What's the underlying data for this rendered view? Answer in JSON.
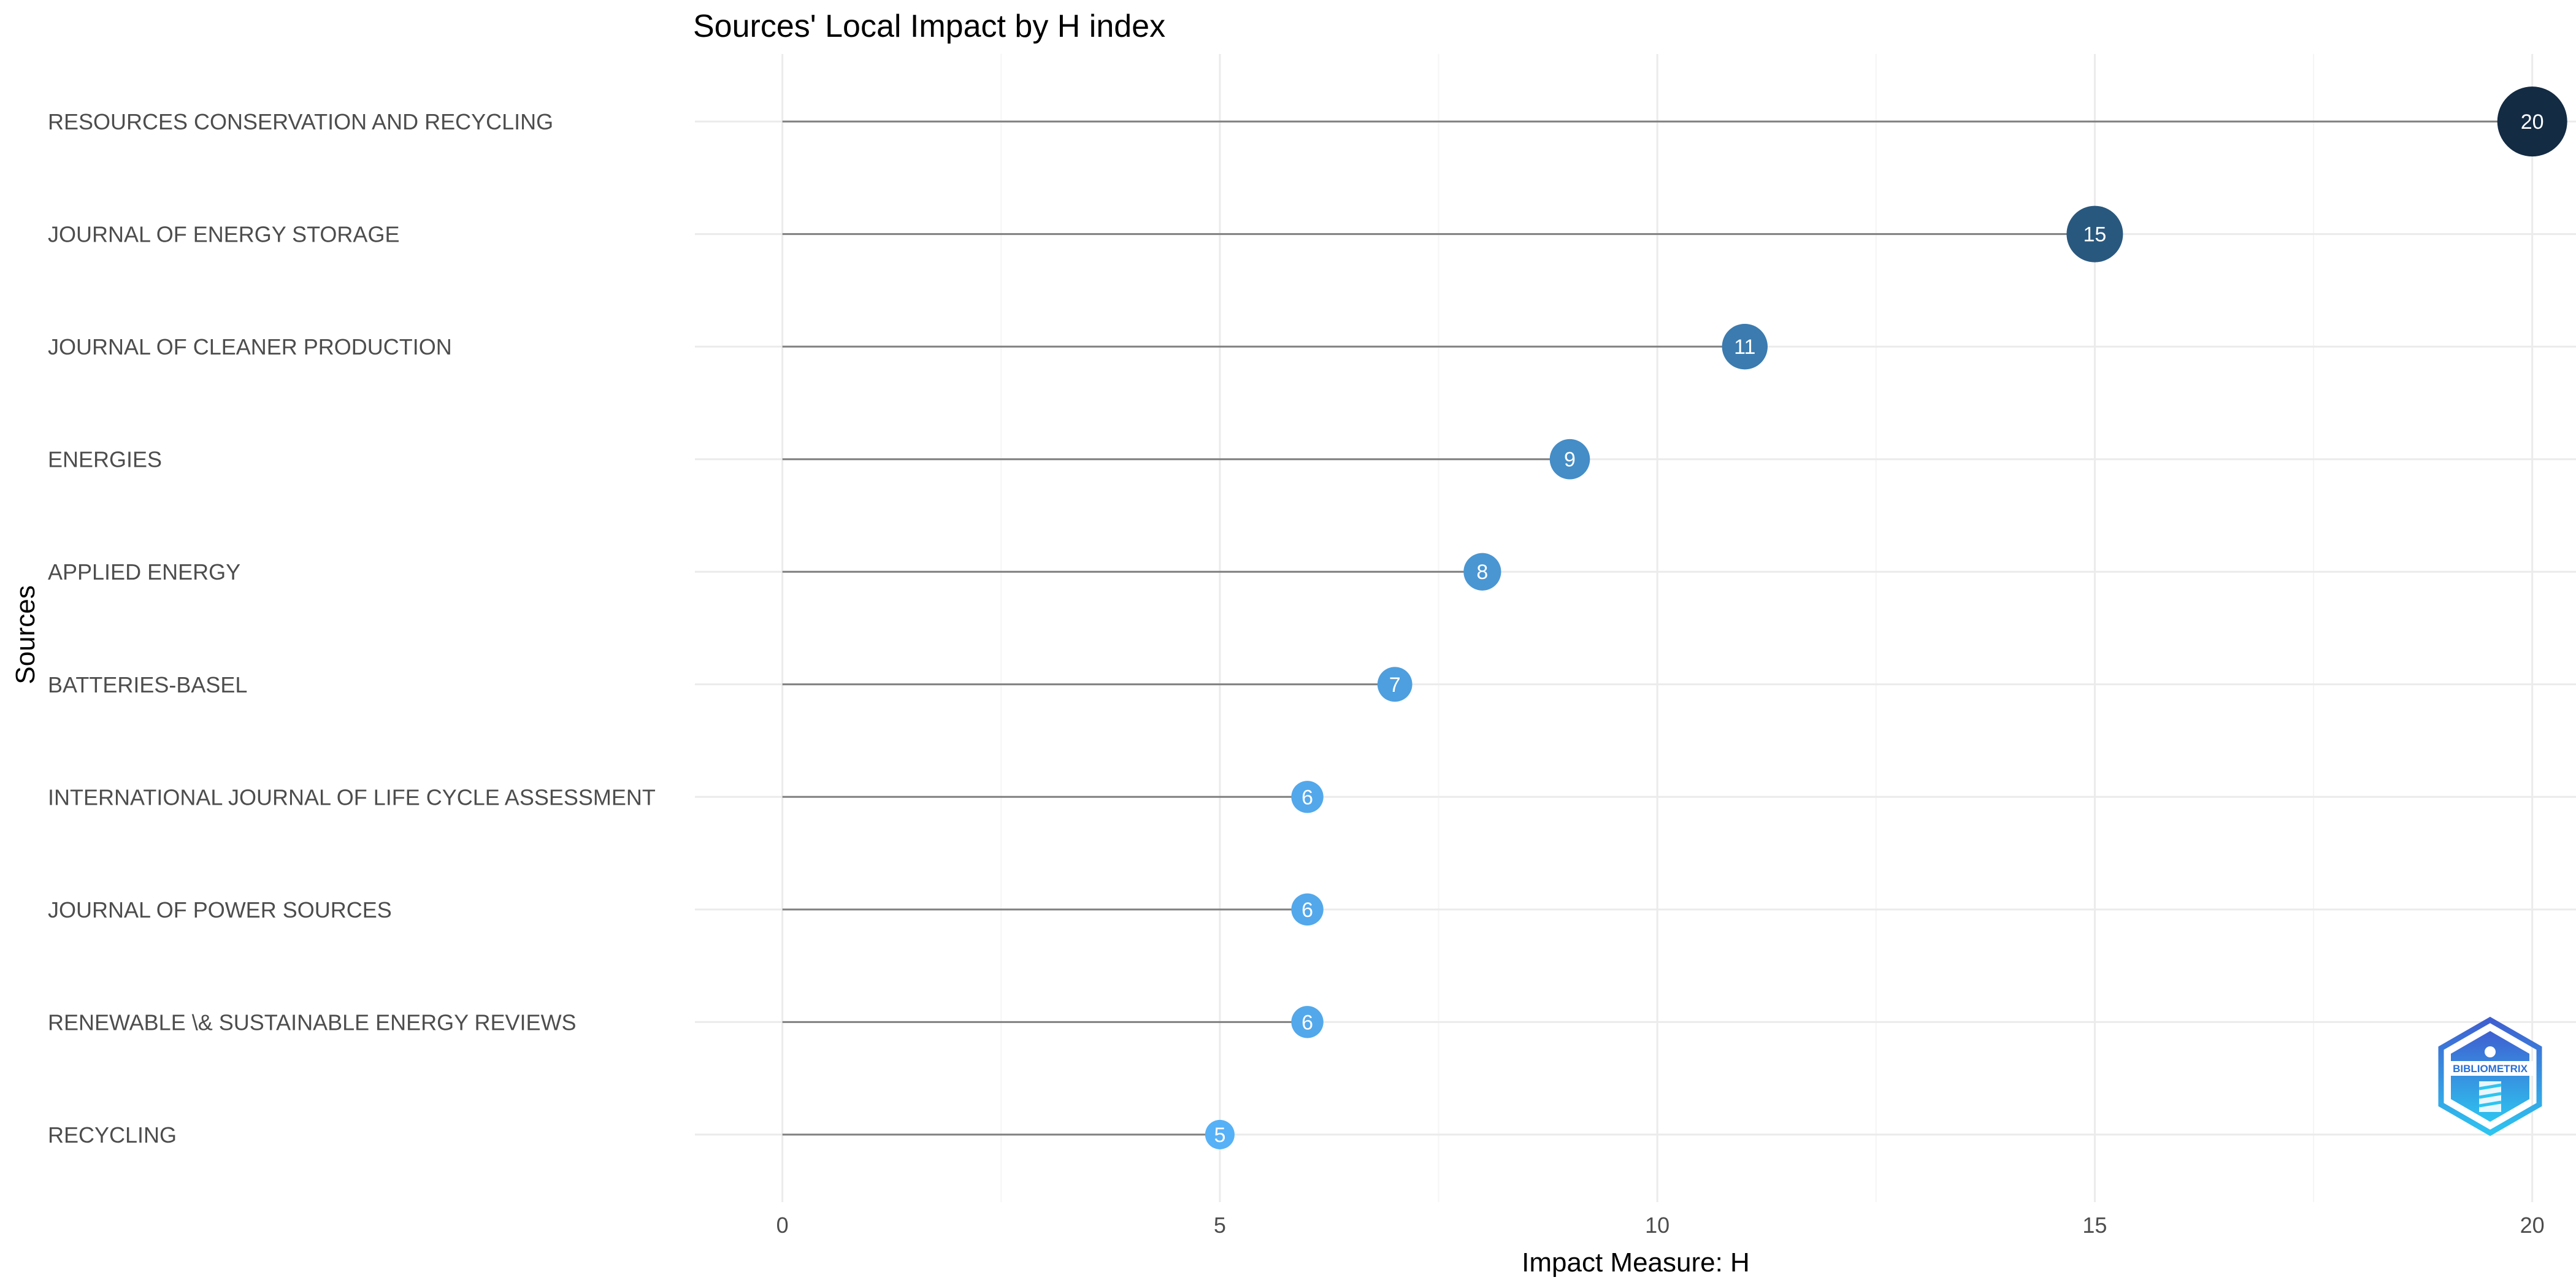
{
  "chart_data": {
    "type": "lollipop",
    "title": "Sources' Local Impact by H index",
    "xlabel": "Impact Measure: H",
    "ylabel": "Sources",
    "xlim": [
      -1,
      20.5
    ],
    "x_ticks": [
      0,
      5,
      10,
      15,
      20
    ],
    "grid": true,
    "categories": [
      "RESOURCES CONSERVATION AND RECYCLING",
      "JOURNAL OF ENERGY STORAGE",
      "JOURNAL OF CLEANER PRODUCTION",
      "ENERGIES",
      "APPLIED ENERGY",
      "BATTERIES-BASEL",
      "INTERNATIONAL JOURNAL OF LIFE CYCLE ASSESSMENT",
      "JOURNAL OF POWER SOURCES",
      "RENEWABLE \\& SUSTAINABLE ENERGY REVIEWS",
      "RECYCLING"
    ],
    "values": [
      20,
      15,
      11,
      9,
      8,
      7,
      6,
      6,
      6,
      5
    ],
    "colors": {
      "low": "#56B1F7",
      "high": "#132B43",
      "segment": "#808080",
      "grid_major": "#ebebeb",
      "grid_minor": "#f5f5f5"
    }
  },
  "logo": {
    "name": "biblioshiny-logo-icon",
    "text": "BIBLIOMETRIX"
  }
}
